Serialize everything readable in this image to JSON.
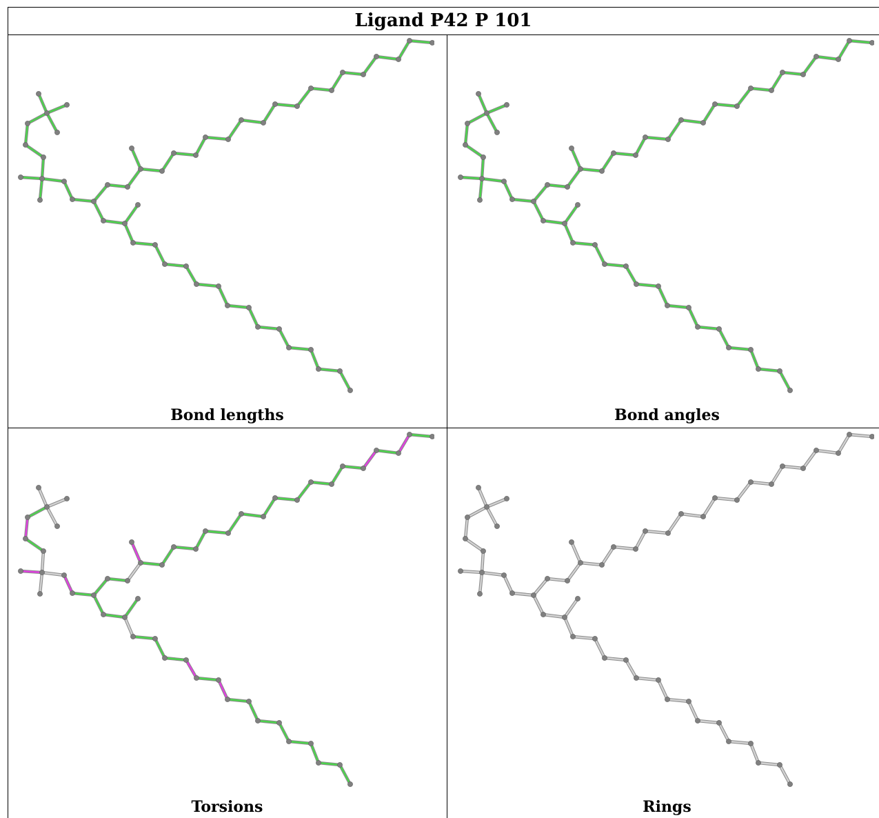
{
  "title": "Ligand P42 P 101",
  "panels": [
    {
      "id": "bond-lengths",
      "caption": "Bond lengths"
    },
    {
      "id": "bond-angles",
      "caption": "Bond angles"
    },
    {
      "id": "torsions",
      "caption": "Torsions"
    },
    {
      "id": "rings",
      "caption": "Rings"
    }
  ],
  "colors": {
    "ok": "#4cd44c",
    "outlier": "#e040e0",
    "neutral": "#d2d2d2",
    "atom": "#808080",
    "border": "#000000"
  }
}
